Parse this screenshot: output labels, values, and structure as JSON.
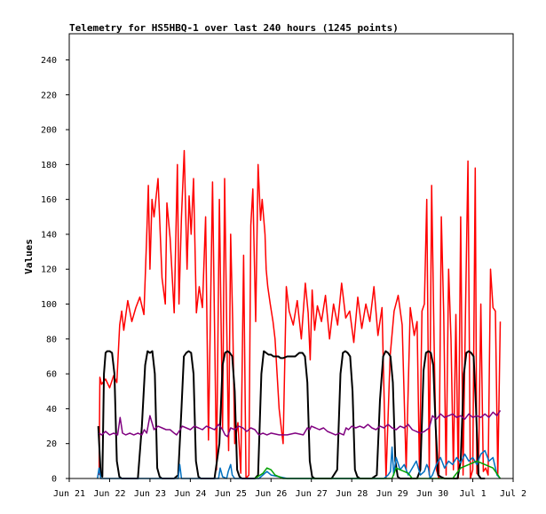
{
  "chart_data": {
    "type": "line",
    "title": "Telemetry for HS5HBQ-1 over last 240 hours (1245 points)",
    "ylabel": "Values",
    "xlabel": "",
    "ylim": [
      0,
      255
    ],
    "xlim": [
      0,
      11
    ],
    "y_ticks": [
      0,
      20,
      40,
      60,
      80,
      100,
      120,
      140,
      160,
      180,
      200,
      220,
      240
    ],
    "x_ticks": [
      {
        "x": 0,
        "label": "Jun 21"
      },
      {
        "x": 1,
        "label": "Jun 22"
      },
      {
        "x": 2,
        "label": "Jun 23"
      },
      {
        "x": 3,
        "label": "Jun 24"
      },
      {
        "x": 4,
        "label": "Jun 25"
      },
      {
        "x": 5,
        "label": "Jun 26"
      },
      {
        "x": 6,
        "label": "Jun 27"
      },
      {
        "x": 7,
        "label": "Jun 28"
      },
      {
        "x": 8,
        "label": "Jun 29"
      },
      {
        "x": 9,
        "label": "Jun 30"
      },
      {
        "x": 10,
        "label": "Jul 1"
      },
      {
        "x": 11,
        "label": "Jul 2"
      }
    ],
    "grid": false,
    "series": [
      {
        "color": "#ff0000",
        "x": [
          0.74,
          0.76,
          0.8,
          0.9,
          1.0,
          1.1,
          1.18,
          1.25,
          1.3,
          1.35,
          1.45,
          1.55,
          1.65,
          1.75,
          1.85,
          1.92,
          1.96,
          2.0,
          2.05,
          2.1,
          2.2,
          2.3,
          2.38,
          2.42,
          2.5,
          2.6,
          2.68,
          2.72,
          2.78,
          2.85,
          2.92,
          2.97,
          3.02,
          3.08,
          3.15,
          3.22,
          3.3,
          3.38,
          3.45,
          3.55,
          3.65,
          3.72,
          3.8,
          3.85,
          3.9,
          3.95,
          4.0,
          4.05,
          4.1,
          4.18,
          4.25,
          4.32,
          4.38,
          4.45,
          4.5,
          4.55,
          4.62,
          4.68,
          4.74,
          4.78,
          4.85,
          4.88,
          4.92,
          4.98,
          5.05,
          5.1,
          5.15,
          5.2,
          5.25,
          5.3,
          5.38,
          5.45,
          5.55,
          5.65,
          5.75,
          5.85,
          5.92,
          5.97,
          6.02,
          6.08,
          6.15,
          6.25,
          6.35,
          6.45,
          6.55,
          6.65,
          6.75,
          6.85,
          6.95,
          7.05,
          7.15,
          7.25,
          7.35,
          7.45,
          7.55,
          7.65,
          7.75,
          7.85,
          7.95,
          8.05,
          8.15,
          8.25,
          8.35,
          8.45,
          8.55,
          8.62,
          8.68,
          8.74,
          8.8,
          8.86,
          8.92,
          8.98,
          9.04,
          9.1,
          9.16,
          9.22,
          9.28,
          9.34,
          9.4,
          9.46,
          9.52,
          9.58,
          9.64,
          9.7,
          9.76,
          9.82,
          9.88,
          9.94,
          10.0,
          10.06,
          10.1,
          10.14,
          10.2,
          10.26,
          10.32,
          10.38,
          10.44,
          10.5,
          10.56,
          10.62,
          10.68
        ],
        "y": [
          2,
          58,
          54,
          57,
          52,
          59,
          55,
          88,
          96,
          85,
          102,
          90,
          98,
          104,
          94,
          140,
          168,
          120,
          160,
          150,
          172,
          115,
          100,
          158,
          138,
          95,
          180,
          100,
          150,
          188,
          120,
          162,
          140,
          172,
          95,
          110,
          98,
          150,
          22,
          170,
          5,
          160,
          28,
          172,
          90,
          16,
          140,
          90,
          20,
          32,
          3,
          128,
          0,
          2,
          145,
          166,
          90,
          180,
          148,
          160,
          140,
          120,
          110,
          100,
          90,
          80,
          60,
          40,
          30,
          20,
          110,
          96,
          88,
          102,
          80,
          112,
          95,
          68,
          108,
          85,
          99,
          90,
          105,
          80,
          100,
          88,
          112,
          92,
          96,
          78,
          104,
          86,
          100,
          90,
          110,
          82,
          98,
          0,
          70,
          96,
          105,
          88,
          5,
          98,
          82,
          90,
          3,
          96,
          100,
          160,
          2,
          168,
          80,
          5,
          0,
          150,
          94,
          2,
          120,
          80,
          5,
          94,
          0,
          150,
          2,
          98,
          182,
          0,
          5,
          178,
          3,
          2,
          100,
          4,
          6,
          2,
          120,
          98,
          96,
          2,
          90
        ],
        "name": ""
      },
      {
        "color": "#000000",
        "x": [
          0.72,
          0.78,
          0.82,
          0.86,
          0.9,
          0.94,
          1.0,
          1.06,
          1.12,
          1.18,
          1.24,
          1.3,
          1.5,
          1.62,
          1.7,
          1.8,
          1.88,
          1.94,
          2.0,
          2.06,
          2.12,
          2.18,
          2.24,
          2.3,
          2.36,
          2.44,
          2.6,
          2.7,
          2.78,
          2.84,
          2.9,
          2.96,
          3.02,
          3.08,
          3.14,
          3.2,
          3.26,
          3.32,
          3.38,
          3.46,
          3.6,
          3.72,
          3.8,
          3.86,
          3.92,
          3.98,
          4.04,
          4.1,
          4.16,
          4.22,
          4.28,
          4.34,
          4.4,
          4.5,
          4.6,
          4.68,
          4.76,
          4.82,
          4.88,
          4.94,
          5.0,
          5.06,
          5.12,
          5.18,
          5.24,
          5.3,
          5.4,
          5.6,
          5.7,
          5.78,
          5.84,
          5.9,
          5.96,
          6.02,
          6.08,
          6.14,
          6.2,
          6.3,
          6.5,
          6.64,
          6.72,
          6.78,
          6.84,
          6.9,
          6.96,
          7.02,
          7.08,
          7.14,
          7.2,
          7.3,
          7.5,
          7.62,
          7.7,
          7.78,
          7.84,
          7.9,
          7.96,
          8.02,
          8.08,
          8.14,
          8.2,
          8.3,
          8.5,
          8.62,
          8.7,
          8.78,
          8.84,
          8.9,
          8.96,
          9.02,
          9.08,
          9.14,
          9.2,
          9.3,
          9.5,
          9.62,
          9.7,
          9.78,
          9.84,
          9.9,
          9.96,
          10.02,
          10.08,
          10.14,
          10.2,
          10.3
        ],
        "y": [
          30,
          2,
          1,
          60,
          72,
          73,
          73,
          72,
          60,
          10,
          1,
          0,
          0,
          0,
          0,
          30,
          65,
          73,
          72,
          73,
          60,
          6,
          1,
          0,
          0,
          0,
          0,
          2,
          40,
          70,
          72,
          73,
          72,
          60,
          10,
          1,
          0,
          0,
          0,
          0,
          0,
          20,
          65,
          72,
          73,
          72,
          70,
          50,
          5,
          1,
          0,
          0,
          0,
          0,
          0,
          2,
          60,
          73,
          72,
          71,
          71,
          70,
          70,
          70,
          69,
          69,
          70,
          70,
          72,
          72,
          70,
          55,
          10,
          1,
          0,
          0,
          0,
          0,
          0,
          5,
          60,
          72,
          73,
          72,
          70,
          50,
          5,
          1,
          0,
          0,
          0,
          2,
          45,
          70,
          73,
          72,
          70,
          55,
          10,
          1,
          0,
          0,
          0,
          0,
          5,
          62,
          72,
          73,
          72,
          65,
          30,
          2,
          1,
          0,
          0,
          0,
          10,
          60,
          72,
          73,
          72,
          70,
          40,
          2,
          0,
          0
        ],
        "name": ""
      },
      {
        "color": "#800080",
        "x": [
          0.74,
          0.8,
          0.9,
          1.0,
          1.1,
          1.2,
          1.26,
          1.32,
          1.4,
          1.5,
          1.6,
          1.7,
          1.8,
          1.86,
          1.92,
          2.0,
          2.1,
          2.2,
          2.3,
          2.4,
          2.5,
          2.6,
          2.66,
          2.72,
          2.8,
          2.9,
          3.0,
          3.1,
          3.2,
          3.3,
          3.4,
          3.5,
          3.6,
          3.7,
          3.8,
          3.86,
          3.92,
          4.0,
          4.1,
          4.2,
          4.3,
          4.4,
          4.5,
          4.6,
          4.7,
          4.8,
          4.9,
          5.0,
          5.2,
          5.4,
          5.6,
          5.8,
          5.9,
          5.96,
          6.0,
          6.1,
          6.2,
          6.3,
          6.4,
          6.5,
          6.6,
          6.7,
          6.8,
          6.86,
          6.92,
          7.0,
          7.1,
          7.2,
          7.3,
          7.4,
          7.5,
          7.6,
          7.7,
          7.8,
          7.9,
          8.0,
          8.1,
          8.2,
          8.3,
          8.4,
          8.5,
          8.6,
          8.7,
          8.8,
          8.86,
          8.92,
          9.0,
          9.1,
          9.2,
          9.3,
          9.4,
          9.5,
          9.6,
          9.7,
          9.8,
          9.9,
          10.0,
          10.1,
          10.2,
          10.3,
          10.4,
          10.5,
          10.6,
          10.68
        ],
        "y": [
          26,
          25,
          27,
          25,
          26,
          25,
          35,
          26,
          25,
          26,
          25,
          26,
          25,
          28,
          26,
          36,
          28,
          30,
          29,
          28,
          28,
          26,
          25,
          27,
          30,
          29,
          28,
          30,
          29,
          28,
          30,
          29,
          28,
          31,
          28,
          25,
          24,
          29,
          28,
          30,
          29,
          27,
          29,
          28,
          25,
          26,
          25,
          26,
          25,
          25,
          26,
          25,
          29,
          28,
          30,
          29,
          28,
          29,
          27,
          26,
          25,
          26,
          25,
          29,
          28,
          30,
          29,
          30,
          29,
          31,
          29,
          28,
          30,
          29,
          31,
          29,
          28,
          30,
          29,
          31,
          28,
          27,
          26,
          27,
          28,
          29,
          36,
          34,
          37,
          35,
          36,
          37,
          35,
          36,
          34,
          37,
          35,
          36,
          35,
          37,
          35,
          38,
          36,
          39
        ],
        "name": ""
      },
      {
        "color": "#0070c0",
        "x": [
          0.7,
          0.74,
          0.78,
          1.0,
          1.5,
          2.0,
          2.5,
          2.7,
          2.74,
          2.78,
          3.0,
          3.5,
          3.7,
          3.74,
          3.8,
          3.9,
          3.94,
          4.0,
          4.04,
          4.1,
          4.2,
          4.5,
          4.7,
          4.9,
          5.0,
          5.4,
          6.0,
          6.5,
          7.0,
          7.5,
          7.8,
          7.9,
          7.96,
          8.0,
          8.04,
          8.1,
          8.2,
          8.3,
          8.4,
          8.5,
          8.6,
          8.7,
          8.8,
          8.86,
          8.9,
          8.94,
          9.0,
          9.1,
          9.2,
          9.3,
          9.4,
          9.5,
          9.6,
          9.7,
          9.8,
          9.9,
          10.0,
          10.1,
          10.2,
          10.3,
          10.4,
          10.5,
          10.6,
          10.68
        ],
        "y": [
          0,
          6,
          0,
          0,
          0,
          0,
          0,
          0,
          8,
          0,
          0,
          0,
          0,
          6,
          1,
          0,
          4,
          8,
          2,
          0,
          0,
          0,
          0,
          4,
          2,
          0,
          0,
          0,
          0,
          0,
          0,
          2,
          4,
          18,
          2,
          12,
          5,
          8,
          2,
          6,
          10,
          2,
          4,
          8,
          6,
          0,
          2,
          8,
          12,
          6,
          10,
          8,
          12,
          9,
          14,
          10,
          12,
          8,
          14,
          16,
          10,
          12,
          2,
          0
        ],
        "name": ""
      },
      {
        "color": "#00a000",
        "x": [
          4.6,
          4.8,
          4.9,
          5.0,
          5.1,
          5.3,
          8.0,
          8.1,
          8.2,
          8.3,
          8.4,
          8.5,
          9.5,
          9.7,
          9.9,
          10.1,
          10.3,
          10.5,
          10.68
        ],
        "y": [
          0,
          3,
          6,
          5,
          2,
          0,
          0,
          6,
          5,
          4,
          3,
          0,
          0,
          6,
          8,
          10,
          8,
          6,
          0
        ],
        "name": ""
      }
    ]
  }
}
